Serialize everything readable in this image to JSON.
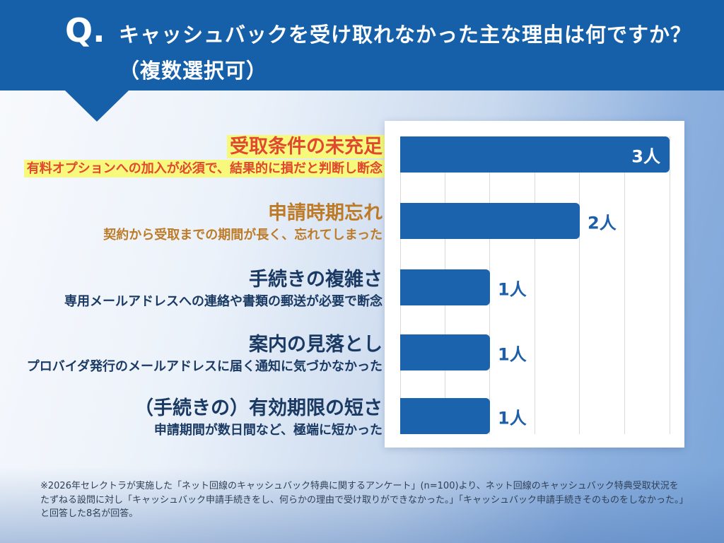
{
  "header": {
    "q_label": "Q.",
    "title_line1": "キャッシュバックを受け取れなかった主な理由は何ですか？",
    "title_line2": "（複数選択可）"
  },
  "colors": {
    "header_bg": "#1560a8",
    "bar": "#1c63ad",
    "value_outside": "#1d5fa9",
    "value_inside": "#ffffff",
    "highlight_bg": "#f6f97c",
    "grid": "#d9d9d9",
    "panel_bg": "#ffffff"
  },
  "chart_data": {
    "type": "bar",
    "orientation": "horizontal",
    "title": "キャッシュバックを受け取れなかった主な理由は何ですか？（複数選択可）",
    "unit": "人",
    "xlim": [
      0,
      3
    ],
    "grid_step": 0.5,
    "grid": true,
    "categories": [
      "受取条件の未充足",
      "申請時期忘れ",
      "手続きの複雑さ",
      "案内の見落とし",
      "（手続きの）有効期限の短さ"
    ],
    "values": [
      3,
      2,
      1,
      1,
      1
    ],
    "rows": [
      {
        "title": "受取条件の未充足",
        "desc": "有料オプションへの加入が必須で、結果的に損だと判断し断念",
        "value": 3,
        "label": "3人",
        "title_color": "#e0482f",
        "desc_color": "#e0482f",
        "highlight": true,
        "value_inside": true
      },
      {
        "title": "申請時期忘れ",
        "desc": "契約から受取までの期間が長く、忘れてしまった",
        "value": 2,
        "label": "2人",
        "title_color": "#bd7b28",
        "desc_color": "#bd7b28",
        "highlight": false,
        "value_inside": false
      },
      {
        "title": "手続きの複雑さ",
        "desc": "専用メールアドレスへの連絡や書類の郵送が必要で断念",
        "value": 1,
        "label": "1人",
        "title_color": "#1a3a64",
        "desc_color": "#1a3a64",
        "highlight": false,
        "value_inside": false
      },
      {
        "title": "案内の見落とし",
        "desc": "プロバイダ発行のメールアドレスに届く通知に気づかなかった",
        "value": 1,
        "label": "1人",
        "title_color": "#1a3a64",
        "desc_color": "#1a3a64",
        "highlight": false,
        "value_inside": false
      },
      {
        "title": "（手続きの）有効期限の短さ",
        "desc": "申請期間が数日間など、極端に短かった",
        "value": 1,
        "label": "1人",
        "title_color": "#1a3a64",
        "desc_color": "#1a3a64",
        "highlight": false,
        "value_inside": false
      }
    ]
  },
  "footnote": "※2026年セレクトラが実施した「ネット回線のキャッシュバック特典に関するアンケート」(n=100)より、ネット回線のキャッシュバック特典受取状況をたずねる設問に対し「キャッシュバック申請手続きをし、何らかの理由で受け取りができなかった。」「キャッシュバック申請手続きそのものをしなかった。」と回答した8名が回答。"
}
